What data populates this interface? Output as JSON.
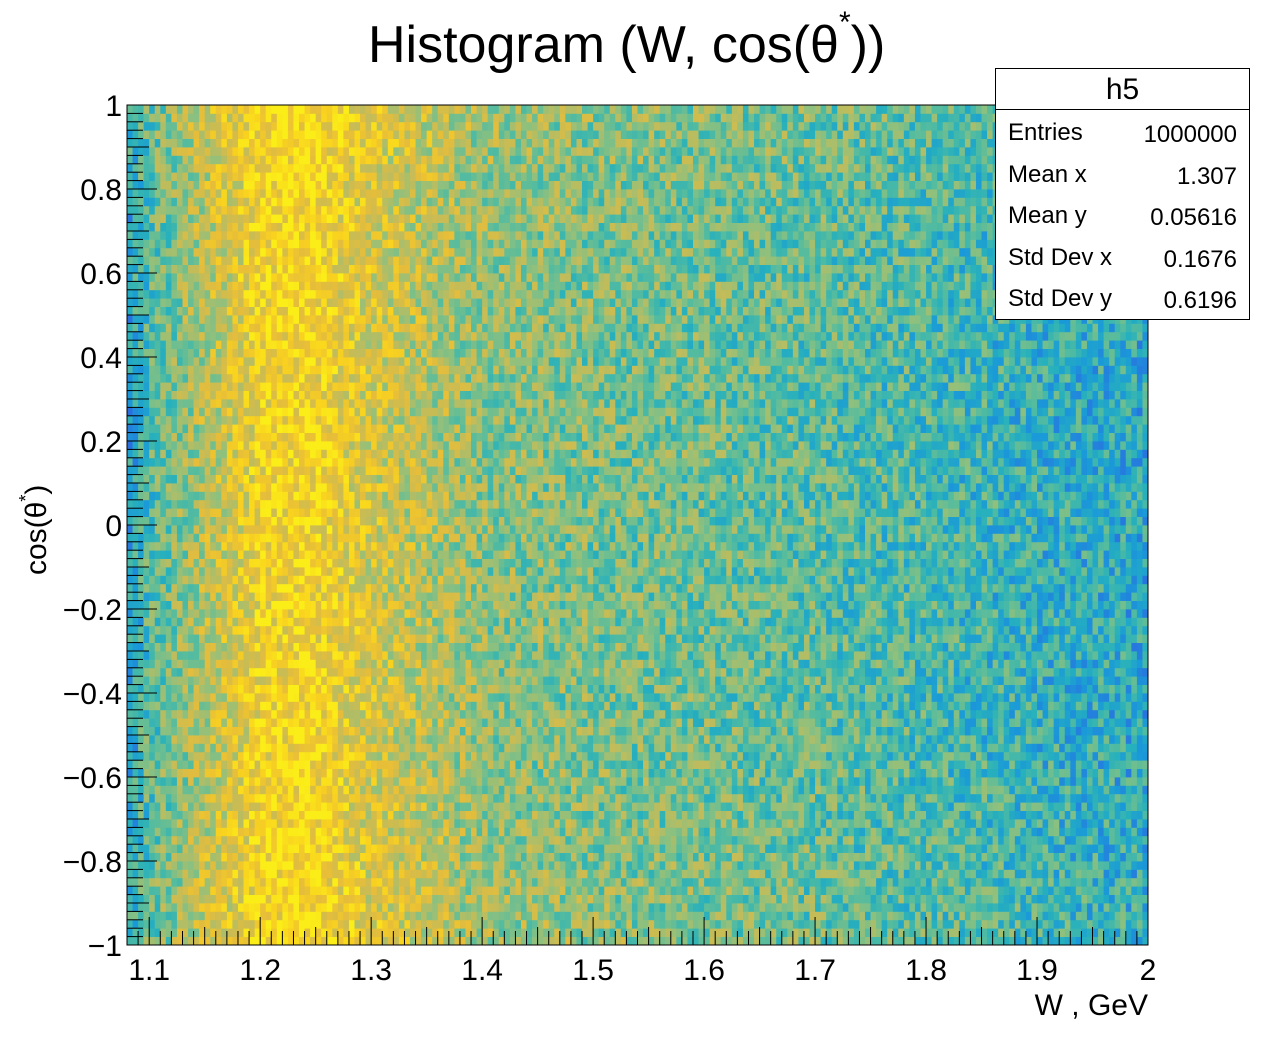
{
  "chart_data": {
    "type": "heatmap",
    "title": "Histogram (W, cos(θ",
    "title_superscript": "*",
    "title_suffix": "))",
    "xlabel": "W , GeV",
    "ylabel_prefix": "cos(θ",
    "ylabel_superscript": "*",
    "ylabel_suffix": ")",
    "xlim": [
      1.08,
      2.0
    ],
    "ylim": [
      -1.0,
      1.0
    ],
    "x_ticks": [
      1.1,
      1.2,
      1.3,
      1.4,
      1.5,
      1.6,
      1.7,
      1.8,
      1.9,
      2.0
    ],
    "x_tick_labels": [
      "1.1",
      "1.2",
      "1.3",
      "1.4",
      "1.5",
      "1.6",
      "1.7",
      "1.8",
      "1.9",
      "2"
    ],
    "y_ticks": [
      -1.0,
      -0.8,
      -0.6,
      -0.4,
      -0.2,
      0.0,
      0.2,
      0.4,
      0.6,
      0.8,
      1.0
    ],
    "y_tick_labels": [
      "−1",
      "−0.8",
      "−0.6",
      "−0.4",
      "−0.2",
      "0",
      "0.2",
      "0.4",
      "0.6",
      "0.8",
      "1"
    ],
    "bins_x": 184,
    "bins_y": 100,
    "colormap": [
      "#2a6fe0",
      "#1a9ad8",
      "#27b0bd",
      "#56bc9e",
      "#90c07d",
      "#c2bc5a",
      "#e6bd3a",
      "#f9d21f",
      "#fbee18"
    ],
    "intensity_profile_w": [
      [
        1.08,
        0.18
      ],
      [
        1.1,
        0.35
      ],
      [
        1.14,
        0.55
      ],
      [
        1.2,
        0.82
      ],
      [
        1.24,
        0.88
      ],
      [
        1.3,
        0.7
      ],
      [
        1.4,
        0.5
      ],
      [
        1.5,
        0.45
      ],
      [
        1.6,
        0.42
      ],
      [
        1.7,
        0.38
      ],
      [
        1.8,
        0.33
      ],
      [
        1.9,
        0.27
      ],
      [
        2.0,
        0.22
      ]
    ],
    "stats": {
      "name": "h5",
      "rows": [
        {
          "label": "Entries",
          "value": "1000000"
        },
        {
          "label": "Mean x",
          "value": "1.307"
        },
        {
          "label": "Mean y",
          "value": "0.05616"
        },
        {
          "label": "Std Dev x",
          "value": "0.1676"
        },
        {
          "label": "Std Dev y",
          "value": "0.6196"
        }
      ]
    }
  }
}
